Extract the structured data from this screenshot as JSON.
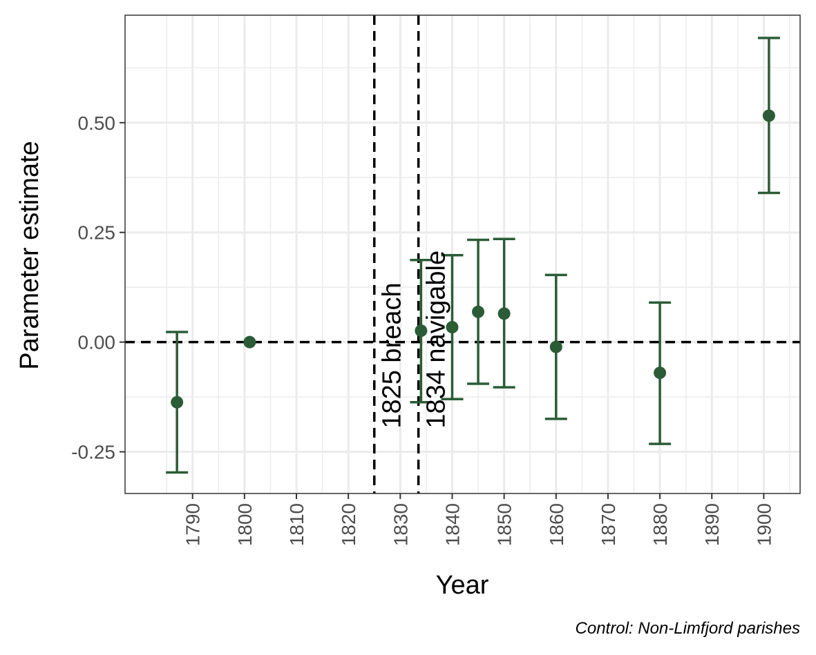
{
  "chart_data": {
    "type": "scatter",
    "title": "",
    "xlabel": "Year",
    "ylabel": "Parameter estimate",
    "caption": "Control: Non-Limfjord parishes",
    "xlim": [
      1777,
      1907
    ],
    "ylim": [
      -0.345,
      0.745
    ],
    "x_ticks": [
      1790,
      1800,
      1810,
      1820,
      1830,
      1840,
      1850,
      1860,
      1870,
      1880,
      1890,
      1900
    ],
    "x_tick_labels": [
      "1790",
      "1800",
      "1810",
      "1820",
      "1830",
      "1840",
      "1850",
      "1860",
      "1870",
      "1880",
      "1890",
      "1900"
    ],
    "y_ticks": [
      -0.25,
      0,
      0.25,
      0.5
    ],
    "y_tick_labels": [
      "-0.25",
      "0.00",
      "0.25",
      "0.50"
    ],
    "grid": true,
    "point_color": "#2b5c36",
    "points": [
      {
        "x": 1787,
        "y": -0.137,
        "lower": -0.297,
        "upper": 0.023
      },
      {
        "x": 1801,
        "y": 0.0
      },
      {
        "x": 1834,
        "y": 0.026,
        "lower": -0.137,
        "upper": 0.187
      },
      {
        "x": 1840,
        "y": 0.034,
        "lower": -0.13,
        "upper": 0.198
      },
      {
        "x": 1845,
        "y": 0.069,
        "lower": -0.095,
        "upper": 0.233
      },
      {
        "x": 1850,
        "y": 0.065,
        "lower": -0.103,
        "upper": 0.235
      },
      {
        "x": 1860,
        "y": -0.011,
        "lower": -0.175,
        "upper": 0.153
      },
      {
        "x": 1880,
        "y": -0.07,
        "lower": -0.232,
        "upper": 0.09
      },
      {
        "x": 1901,
        "y": 0.516,
        "lower": 0.34,
        "upper": 0.693
      }
    ],
    "reference_lines": {
      "horizontal": 0,
      "vertical": [
        {
          "x": 1825,
          "label": "1825 breach"
        },
        {
          "x": 1833.5,
          "label": "1834 navigable"
        }
      ]
    }
  }
}
